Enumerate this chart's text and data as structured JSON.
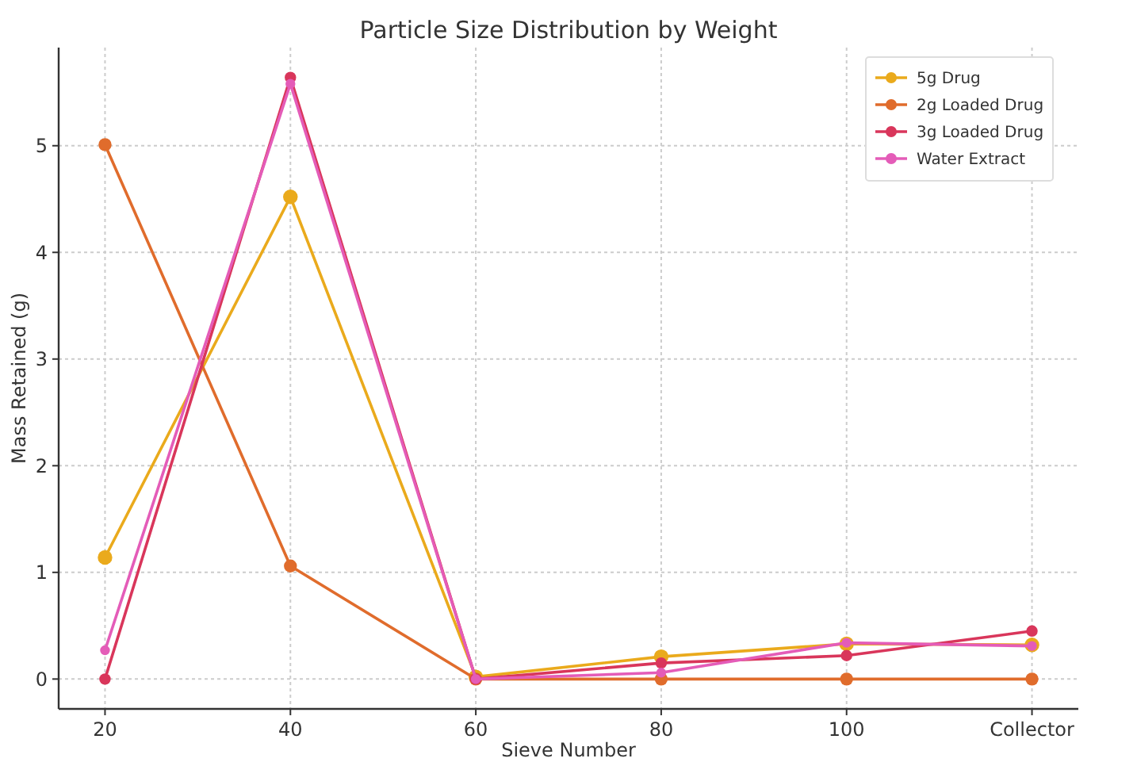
{
  "chart_data": {
    "type": "line",
    "title": "Particle Size Distribution by Weight",
    "xlabel": "Sieve Number",
    "ylabel": "Mass Retained (g)",
    "categories": [
      "20",
      "40",
      "60",
      "80",
      "100",
      "Collector"
    ],
    "series": [
      {
        "name": "5g Drug",
        "color": "#eaaa1c",
        "values": [
          1.14,
          4.52,
          0.02,
          0.21,
          0.33,
          0.32
        ]
      },
      {
        "name": "2g Loaded Drug",
        "color": "#e06c2c",
        "values": [
          5.01,
          1.06,
          0.0,
          0.0,
          0.0,
          0.0
        ]
      },
      {
        "name": "3g Loaded Drug",
        "color": "#d9365b",
        "values": [
          0.0,
          5.64,
          0.0,
          0.15,
          0.22,
          0.45
        ]
      },
      {
        "name": "Water Extract",
        "color": "#e45cb8",
        "values": [
          0.27,
          5.58,
          0.0,
          0.06,
          0.34,
          0.31
        ]
      }
    ],
    "ylim": [
      -0.28,
      5.92
    ],
    "yticks": [
      0,
      1,
      2,
      3,
      4,
      5
    ],
    "grid": true,
    "legend": "top right",
    "marker": "circle",
    "line_style": "solid"
  }
}
